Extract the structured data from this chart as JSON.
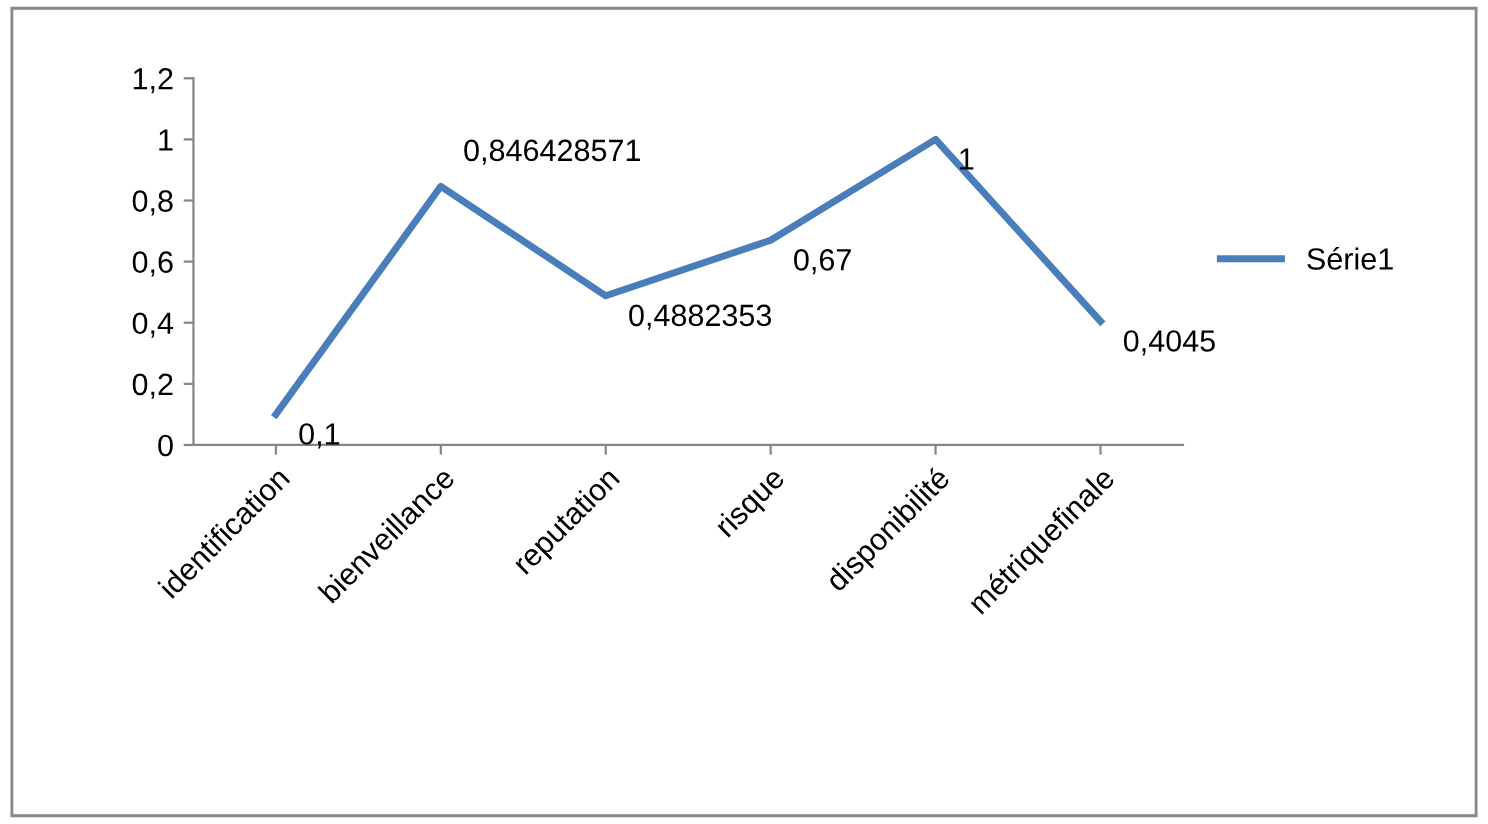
{
  "chart_data": {
    "type": "line",
    "categories": [
      "identification",
      "bienveillance",
      "reputation",
      "risque",
      "disponibilité",
      "métriquefinale"
    ],
    "series": [
      {
        "name": "Série1",
        "color": "#4a7ebb",
        "values": [
          0.1,
          0.846428571,
          0.4882353,
          0.67,
          1,
          0.4045
        ],
        "value_labels": [
          "0,1",
          "0,846428571",
          "0,4882353",
          "0,67",
          "1",
          "0,4045"
        ]
      }
    ],
    "ylim": [
      0,
      1.2
    ],
    "yticks": [
      0,
      {
        "value": 0.2,
        "label": "0,2"
      },
      {
        "value": 0.4,
        "label": "0,4"
      },
      {
        "value": 0.6,
        "label": "0,6"
      },
      {
        "value": 0.8,
        "label": "0,8"
      },
      1,
      {
        "value": 1.2,
        "label": "1,2"
      }
    ],
    "grid": false,
    "legend": "right",
    "marker": "none",
    "line_style": "solid"
  }
}
